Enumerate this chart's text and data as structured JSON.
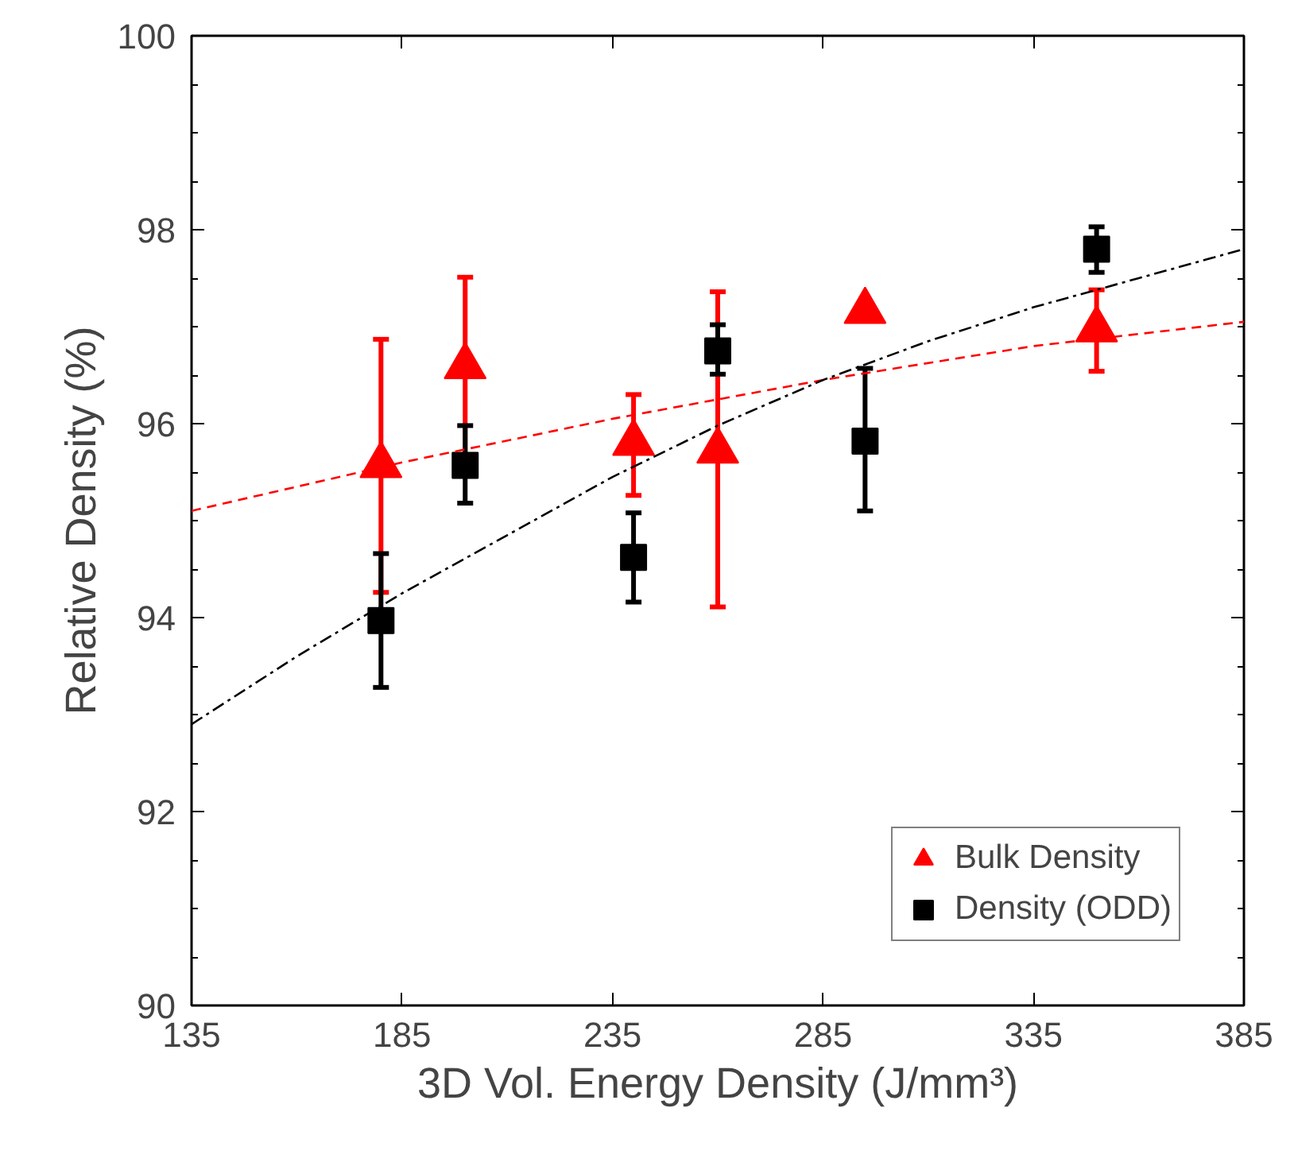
{
  "chart_data": {
    "type": "scatter",
    "xlabel": "3D Vol. Energy Density (J/mm³)",
    "ylabel": "Relative Density (%)",
    "x": [
      180,
      200,
      240,
      260,
      295,
      350
    ],
    "series": [
      {
        "name": "Bulk Density",
        "color": "#ff0000",
        "marker": "triangle",
        "values": [
          95.57,
          96.59,
          95.8,
          95.72,
          97.16,
          96.97
        ],
        "errors": [
          [
            94.26,
            96.87
          ],
          [
            95.67,
            97.51
          ],
          [
            95.26,
            96.3
          ],
          [
            94.11,
            97.36
          ],
          null,
          [
            96.54,
            97.38
          ]
        ]
      },
      {
        "name": "Density (ODD)",
        "color": "#000000",
        "marker": "square",
        "values": [
          93.97,
          95.57,
          94.62,
          96.75,
          95.82,
          97.8
        ],
        "errors": [
          [
            93.28,
            94.66
          ],
          [
            95.18,
            95.98
          ],
          [
            94.16,
            95.08
          ],
          [
            96.51,
            97.02
          ],
          [
            95.1,
            96.57
          ],
          [
            97.56,
            98.03
          ]
        ]
      },
      {
        "type": "line",
        "color": "#ff0000",
        "line_style": "dashed",
        "marker": "none",
        "x": [
          135,
          185,
          235,
          285,
          335,
          385
        ],
        "values": [
          95.1,
          95.6,
          96.05,
          96.45,
          96.8,
          97.05
        ]
      },
      {
        "type": "line",
        "color": "#000000",
        "line_style": "dashdot",
        "marker": "none",
        "x": [
          135,
          160,
          185,
          210,
          235,
          260,
          285,
          310,
          335,
          360,
          385
        ],
        "values": [
          92.9,
          93.6,
          94.25,
          94.85,
          95.45,
          95.98,
          96.45,
          96.85,
          97.2,
          97.5,
          97.8
        ]
      }
    ],
    "xlim": [
      135,
      385
    ],
    "xticks": [
      135,
      185,
      235,
      285,
      335,
      385
    ],
    "ylim": [
      90,
      100
    ],
    "yticks": [
      90,
      92,
      94,
      96,
      98,
      100
    ],
    "grid": false,
    "legend": "bottom right"
  }
}
